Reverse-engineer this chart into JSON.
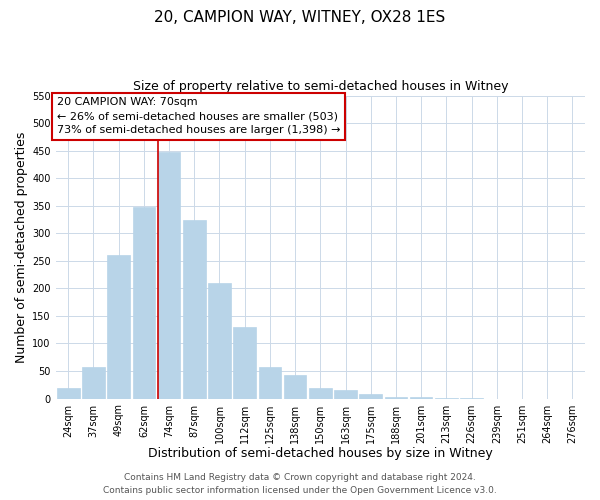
{
  "title": "20, CAMPION WAY, WITNEY, OX28 1ES",
  "subtitle": "Size of property relative to semi-detached houses in Witney",
  "xlabel": "Distribution of semi-detached houses by size in Witney",
  "ylabel": "Number of semi-detached properties",
  "bar_labels": [
    "24sqm",
    "37sqm",
    "49sqm",
    "62sqm",
    "74sqm",
    "87sqm",
    "100sqm",
    "112sqm",
    "125sqm",
    "138sqm",
    "150sqm",
    "163sqm",
    "175sqm",
    "188sqm",
    "201sqm",
    "213sqm",
    "226sqm",
    "239sqm",
    "251sqm",
    "264sqm",
    "276sqm"
  ],
  "bar_values": [
    20,
    57,
    260,
    348,
    448,
    325,
    210,
    130,
    57,
    42,
    20,
    15,
    8,
    3,
    2,
    1,
    1,
    0,
    0,
    0,
    0
  ],
  "bar_color": "#b8d4e8",
  "bar_edge_color": "#b8d4e8",
  "vline_color": "#cc0000",
  "annotation_title": "20 CAMPION WAY: 70sqm",
  "annotation_line1": "← 26% of semi-detached houses are smaller (503)",
  "annotation_line2": "73% of semi-detached houses are larger (1,398) →",
  "annotation_box_color": "#ffffff",
  "annotation_box_edge": "#cc0000",
  "ylim": [
    0,
    550
  ],
  "yticks": [
    0,
    50,
    100,
    150,
    200,
    250,
    300,
    350,
    400,
    450,
    500,
    550
  ],
  "footer_line1": "Contains HM Land Registry data © Crown copyright and database right 2024.",
  "footer_line2": "Contains public sector information licensed under the Open Government Licence v3.0.",
  "bg_color": "#ffffff",
  "grid_color": "#ccd9e8",
  "title_fontsize": 11,
  "subtitle_fontsize": 9,
  "axis_label_fontsize": 9,
  "tick_fontsize": 7,
  "annotation_fontsize": 8,
  "footer_fontsize": 6.5
}
